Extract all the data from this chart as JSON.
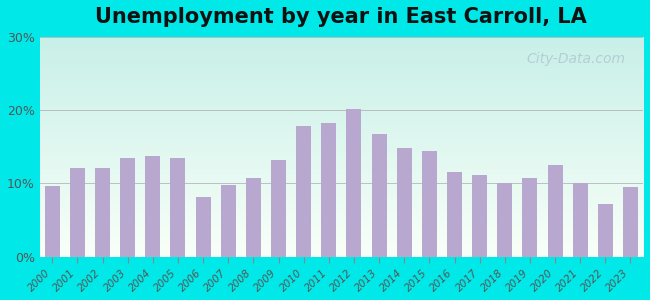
{
  "title": "Unemployment by year in East Carroll, LA",
  "years": [
    2000,
    2001,
    2002,
    2003,
    2004,
    2005,
    2006,
    2007,
    2008,
    2009,
    2010,
    2011,
    2012,
    2013,
    2014,
    2015,
    2016,
    2017,
    2018,
    2019,
    2020,
    2021,
    2022,
    2023
  ],
  "values": [
    9.7,
    12.1,
    12.1,
    13.5,
    13.8,
    13.5,
    8.2,
    9.8,
    10.8,
    13.2,
    17.8,
    18.3,
    20.1,
    16.8,
    14.8,
    14.4,
    11.5,
    11.2,
    10.1,
    10.8,
    12.5,
    10.0,
    7.2,
    9.5
  ],
  "bar_color": "#b8a8d0",
  "yticks": [
    0,
    10,
    20,
    30
  ],
  "ytick_labels": [
    "0%",
    "10%",
    "20%",
    "30%"
  ],
  "ylim": [
    0,
    30
  ],
  "background_top": "#c8f0e8",
  "background_bottom": "#f8fff8",
  "outer_background": "#00e8e8",
  "title_fontsize": 15,
  "watermark": "City-Data.com"
}
